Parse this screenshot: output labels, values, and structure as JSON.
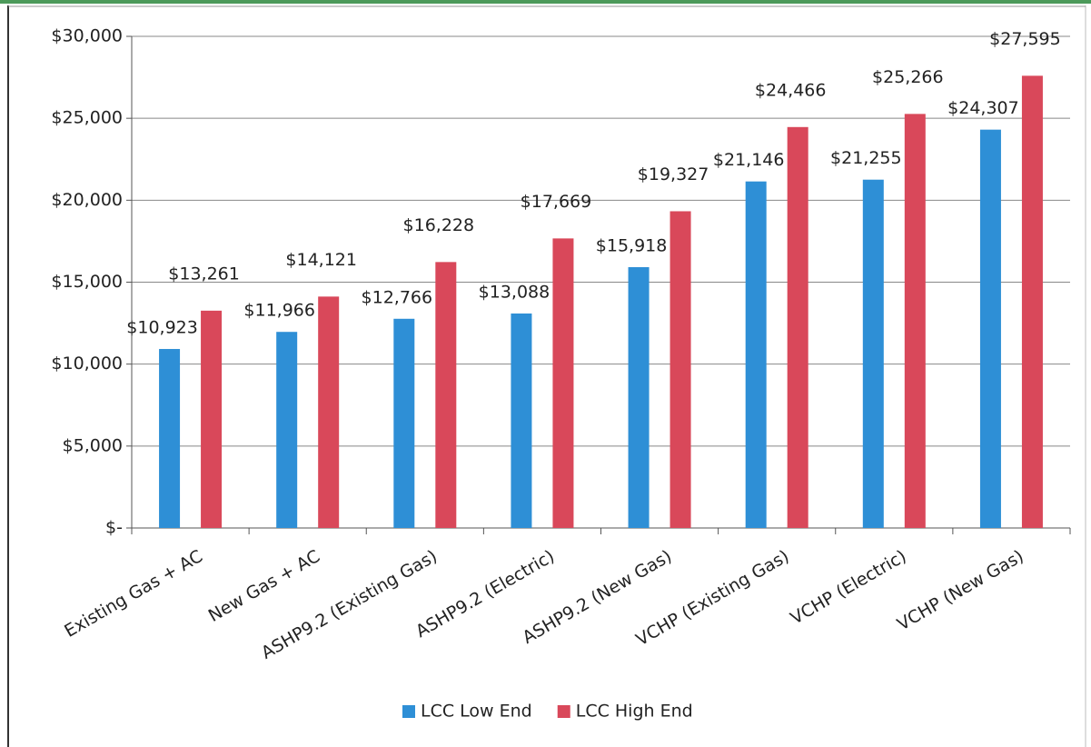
{
  "chart_data": {
    "type": "bar",
    "categories": [
      "Existing Gas + AC",
      "New Gas + AC",
      "ASHP9.2 (Existing Gas)",
      "ASHP9.2 (Electric)",
      "ASHP9.2 (New Gas)",
      "VCHP (Existing Gas)",
      "VCHP (Electric)",
      "VCHP (New Gas)"
    ],
    "series": [
      {
        "name": "LCC Low End",
        "color": "#2e8fd6",
        "values": [
          10923,
          11966,
          12766,
          13088,
          15918,
          21146,
          21255,
          24307
        ],
        "value_labels": [
          "$10,923",
          "$11,966",
          "$12,766",
          "$13,088",
          "$15,918",
          "$21,146",
          "$21,255",
          "$24,307"
        ]
      },
      {
        "name": "LCC High End",
        "color": "#d9485a",
        "values": [
          13261,
          14121,
          16228,
          17669,
          19327,
          24466,
          25266,
          27595
        ],
        "value_labels": [
          "$13,261",
          "$14,121",
          "$16,228",
          "$17,669",
          "$19,327",
          "$24,466",
          "$25,266",
          "$27,595"
        ]
      }
    ],
    "ylim": [
      0,
      30000
    ],
    "yticks": [
      {
        "value": 0,
        "label": "$-"
      },
      {
        "value": 5000,
        "label": "$5,000"
      },
      {
        "value": 10000,
        "label": "$10,000"
      },
      {
        "value": 15000,
        "label": "$15,000"
      },
      {
        "value": 20000,
        "label": "$20,000"
      },
      {
        "value": 25000,
        "label": "$25,000"
      },
      {
        "value": 30000,
        "label": "$30,000"
      }
    ],
    "grid": true,
    "legend": "bottom"
  }
}
